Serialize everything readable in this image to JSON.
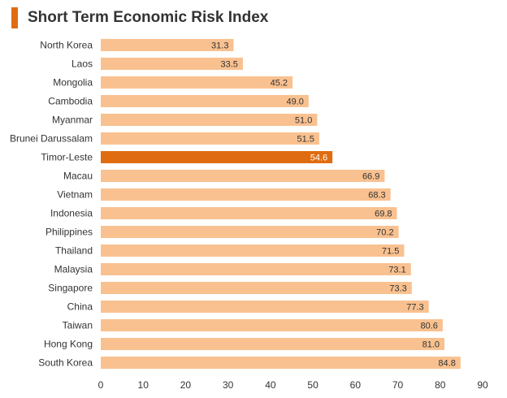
{
  "chart_data": {
    "type": "bar",
    "orientation": "horizontal",
    "title": "Short Term Economic Risk Index",
    "categories": [
      "North Korea",
      "Laos",
      "Mongolia",
      "Cambodia",
      "Myanmar",
      "Brunei Darussalam",
      "Timor-Leste",
      "Macau",
      "Vietnam",
      "Indonesia",
      "Philippines",
      "Thailand",
      "Malaysia",
      "Singapore",
      "China",
      "Taiwan",
      "Hong Kong",
      "South Korea"
    ],
    "values": [
      31.3,
      33.5,
      45.2,
      49.0,
      51.0,
      51.5,
      54.6,
      66.9,
      68.3,
      69.8,
      70.2,
      71.5,
      73.1,
      73.3,
      77.3,
      80.6,
      81.0,
      84.8
    ],
    "value_labels": [
      "31.3",
      "33.5",
      "45.2",
      "49.0",
      "51.0",
      "51.5",
      "54.6",
      "66.9",
      "68.3",
      "69.8",
      "70.2",
      "71.5",
      "73.1",
      "73.3",
      "77.3",
      "80.6",
      "81.0",
      "84.8"
    ],
    "highlight": "Timor-Leste",
    "xlim": [
      0,
      90
    ],
    "xticks": [
      0,
      10,
      20,
      30,
      40,
      50,
      60,
      70,
      80,
      90
    ],
    "grid": false,
    "colors": {
      "bar": "#F9C190",
      "highlight": "#E06C11",
      "title_accent": "#E06C11"
    }
  }
}
